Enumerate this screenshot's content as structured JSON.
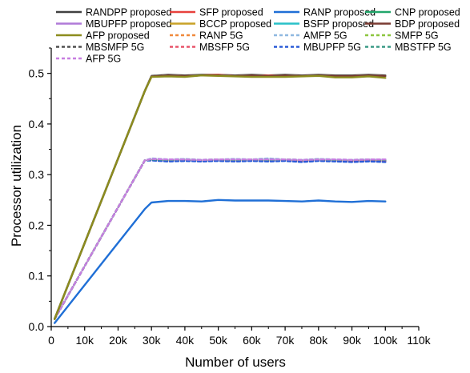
{
  "chart_data": {
    "type": "line",
    "xlabel": "Number of users",
    "ylabel": "Processor utilization",
    "xlim": [
      0,
      110000
    ],
    "ylim": [
      0,
      0.55
    ],
    "xticks": [
      {
        "value": 0,
        "label": "0"
      },
      {
        "value": 10000,
        "label": "10k"
      },
      {
        "value": 20000,
        "label": "20k"
      },
      {
        "value": 30000,
        "label": "30k"
      },
      {
        "value": 40000,
        "label": "40k"
      },
      {
        "value": 50000,
        "label": "50k"
      },
      {
        "value": 60000,
        "label": "60k"
      },
      {
        "value": 70000,
        "label": "70k"
      },
      {
        "value": 80000,
        "label": "80k"
      },
      {
        "value": 90000,
        "label": "90k"
      },
      {
        "value": 100000,
        "label": "100k"
      },
      {
        "value": 110000,
        "label": "110k"
      }
    ],
    "yticks": [
      {
        "value": 0,
        "label": "0.0"
      },
      {
        "value": 0.1,
        "label": "0.1"
      },
      {
        "value": 0.2,
        "label": "0.2"
      },
      {
        "value": 0.3,
        "label": "0.3"
      },
      {
        "value": 0.4,
        "label": "0.4"
      },
      {
        "value": 0.5,
        "label": "0.5"
      }
    ],
    "grid": false,
    "legend_position": "top",
    "x": [
      1000,
      28000,
      30000,
      35000,
      40000,
      45000,
      50000,
      55000,
      60000,
      65000,
      70000,
      75000,
      80000,
      85000,
      90000,
      95000,
      100000
    ],
    "series": [
      {
        "name": "RANDPP proposed",
        "color": "#404040",
        "dash": "solid",
        "values": [
          0.015,
          0.465,
          0.495,
          0.497,
          0.496,
          0.497,
          0.497,
          0.496,
          0.497,
          0.496,
          0.497,
          0.496,
          0.497,
          0.496,
          0.496,
          0.497,
          0.496
        ]
      },
      {
        "name": "SFP proposed",
        "color": "#e8413c",
        "dash": "solid",
        "values": [
          0.015,
          0.465,
          0.494,
          0.496,
          0.495,
          0.496,
          0.497,
          0.495,
          0.496,
          0.496,
          0.496,
          0.495,
          0.496,
          0.495,
          0.495,
          0.496,
          0.495
        ]
      },
      {
        "name": "RANP proposed",
        "color": "#1f6fd6",
        "dash": "solid",
        "values": [
          0.007,
          0.232,
          0.245,
          0.248,
          0.248,
          0.247,
          0.25,
          0.249,
          0.249,
          0.249,
          0.248,
          0.247,
          0.249,
          0.247,
          0.246,
          0.248,
          0.247
        ]
      },
      {
        "name": "CNP proposed",
        "color": "#22a66b",
        "dash": "solid",
        "values": [
          0.015,
          0.465,
          0.494,
          0.496,
          0.495,
          0.496,
          0.496,
          0.495,
          0.496,
          0.495,
          0.496,
          0.495,
          0.496,
          0.495,
          0.495,
          0.496,
          0.495
        ]
      },
      {
        "name": "MBUPFP proposed",
        "color": "#b07ad8",
        "dash": "solid",
        "values": [
          0.015,
          0.465,
          0.494,
          0.496,
          0.495,
          0.496,
          0.496,
          0.495,
          0.496,
          0.495,
          0.496,
          0.495,
          0.496,
          0.495,
          0.495,
          0.496,
          0.495
        ]
      },
      {
        "name": "BCCP proposed",
        "color": "#c9a227",
        "dash": "solid",
        "values": [
          0.015,
          0.465,
          0.494,
          0.496,
          0.495,
          0.496,
          0.496,
          0.495,
          0.496,
          0.495,
          0.496,
          0.495,
          0.496,
          0.495,
          0.495,
          0.496,
          0.495
        ]
      },
      {
        "name": "BSFP proposed",
        "color": "#29c1c8",
        "dash": "solid",
        "values": [
          0.015,
          0.465,
          0.494,
          0.496,
          0.495,
          0.496,
          0.496,
          0.495,
          0.496,
          0.495,
          0.496,
          0.495,
          0.496,
          0.495,
          0.495,
          0.496,
          0.495
        ]
      },
      {
        "name": "BDP proposed",
        "color": "#7a3b32",
        "dash": "solid",
        "values": [
          0.015,
          0.465,
          0.494,
          0.496,
          0.495,
          0.496,
          0.496,
          0.495,
          0.496,
          0.495,
          0.496,
          0.495,
          0.496,
          0.495,
          0.495,
          0.496,
          0.495
        ]
      },
      {
        "name": "AFP proposed",
        "color": "#8c8c1e",
        "dash": "solid",
        "values": [
          0.015,
          0.465,
          0.493,
          0.494,
          0.493,
          0.496,
          0.495,
          0.494,
          0.493,
          0.493,
          0.493,
          0.494,
          0.495,
          0.492,
          0.492,
          0.494,
          0.491
        ]
      },
      {
        "name": "RANP 5G",
        "color": "#f08a3c",
        "dash": "dashed",
        "values": [
          0.015,
          0.328,
          0.33,
          0.328,
          0.329,
          0.327,
          0.329,
          0.328,
          0.33,
          0.328,
          0.329,
          0.327,
          0.329,
          0.328,
          0.328,
          0.327,
          0.327
        ]
      },
      {
        "name": "AMFP 5G",
        "color": "#8fb8e0",
        "dash": "dashed",
        "values": [
          0.015,
          0.328,
          0.332,
          0.33,
          0.331,
          0.329,
          0.33,
          0.331,
          0.33,
          0.332,
          0.33,
          0.329,
          0.331,
          0.33,
          0.329,
          0.33,
          0.33
        ]
      },
      {
        "name": "SMFP 5G",
        "color": "#8cc63f",
        "dash": "dashed",
        "values": [
          0.015,
          0.328,
          0.33,
          0.329,
          0.33,
          0.328,
          0.33,
          0.329,
          0.33,
          0.329,
          0.33,
          0.328,
          0.33,
          0.329,
          0.328,
          0.329,
          0.328
        ]
      },
      {
        "name": "MBSMFP 5G",
        "color": "#505050",
        "dash": "dashed",
        "values": [
          0.015,
          0.328,
          0.329,
          0.328,
          0.329,
          0.327,
          0.329,
          0.328,
          0.329,
          0.328,
          0.329,
          0.327,
          0.329,
          0.328,
          0.327,
          0.328,
          0.327
        ]
      },
      {
        "name": "MBSFP 5G",
        "color": "#e8546a",
        "dash": "dashed",
        "values": [
          0.015,
          0.328,
          0.329,
          0.327,
          0.328,
          0.327,
          0.328,
          0.327,
          0.328,
          0.327,
          0.328,
          0.326,
          0.328,
          0.327,
          0.326,
          0.327,
          0.326
        ]
      },
      {
        "name": "MBUPFP 5G",
        "color": "#2a5bd7",
        "dash": "dashed",
        "values": [
          0.015,
          0.328,
          0.328,
          0.326,
          0.327,
          0.326,
          0.327,
          0.326,
          0.327,
          0.326,
          0.327,
          0.325,
          0.327,
          0.326,
          0.325,
          0.326,
          0.325
        ]
      },
      {
        "name": "MBSTFP 5G",
        "color": "#3a9a86",
        "dash": "dashed",
        "values": [
          0.015,
          0.328,
          0.33,
          0.329,
          0.33,
          0.329,
          0.33,
          0.329,
          0.33,
          0.329,
          0.33,
          0.329,
          0.33,
          0.329,
          0.329,
          0.33,
          0.329
        ]
      },
      {
        "name": "AFP 5G",
        "color": "#c77ee0",
        "dash": "dashed",
        "values": [
          0.015,
          0.328,
          0.331,
          0.33,
          0.33,
          0.329,
          0.33,
          0.33,
          0.33,
          0.33,
          0.33,
          0.329,
          0.33,
          0.33,
          0.329,
          0.33,
          0.33
        ]
      }
    ]
  }
}
